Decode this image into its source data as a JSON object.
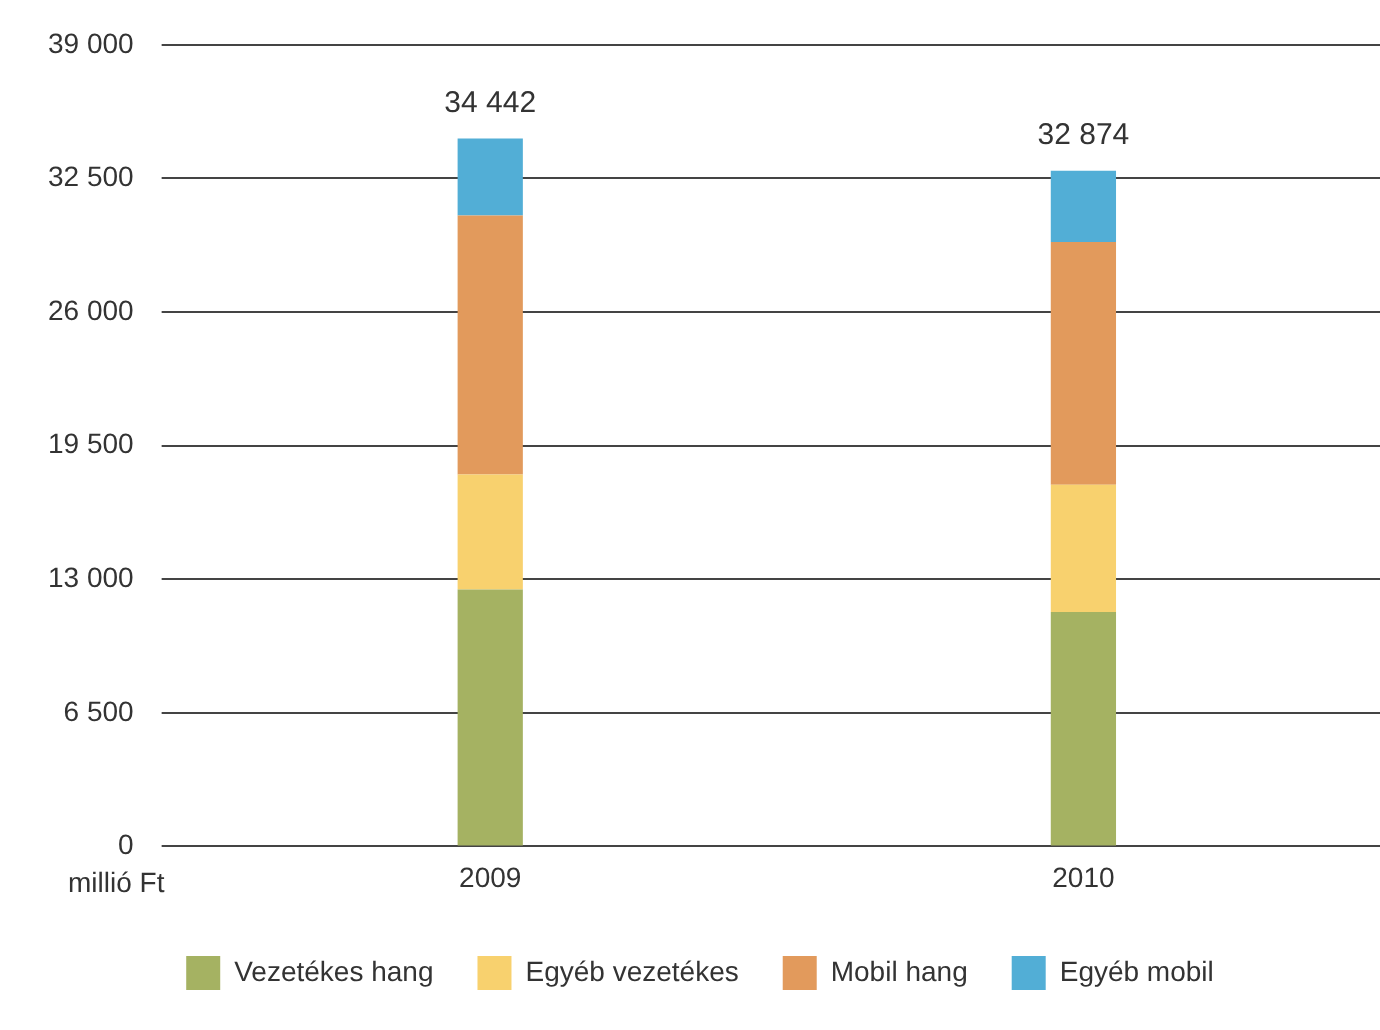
{
  "chart_data": {
    "type": "bar",
    "stacked": true,
    "ylabel": "millió Ft",
    "categories": [
      "2009",
      "2010"
    ],
    "series": [
      {
        "name": "Vezetékes hang",
        "color": "#a5b262",
        "values": [
          12500,
          11400
        ]
      },
      {
        "name": "Egyéb vezetékes",
        "color": "#f8d16e",
        "values": [
          5600,
          6200
        ]
      },
      {
        "name": "Mobil hang",
        "color": "#e29a5c",
        "values": [
          12600,
          11800
        ]
      },
      {
        "name": "Egyéb mobil",
        "color": "#52aed6",
        "values": [
          3742,
          3474
        ]
      }
    ],
    "totals": [
      "34 442",
      "32 874"
    ],
    "ylim": [
      0,
      39000
    ],
    "yticks": [
      0,
      {
        "value": 6500,
        "label": "6 500"
      },
      {
        "value": 13000,
        "label": "13 000"
      },
      {
        "value": 19500,
        "label": "19 500"
      },
      {
        "value": 26000,
        "label": "26 000"
      },
      {
        "value": 32500,
        "label": "32 500"
      },
      {
        "value": 39000,
        "label": "39 000"
      }
    ],
    "grid": "y",
    "legend": "bottom"
  }
}
